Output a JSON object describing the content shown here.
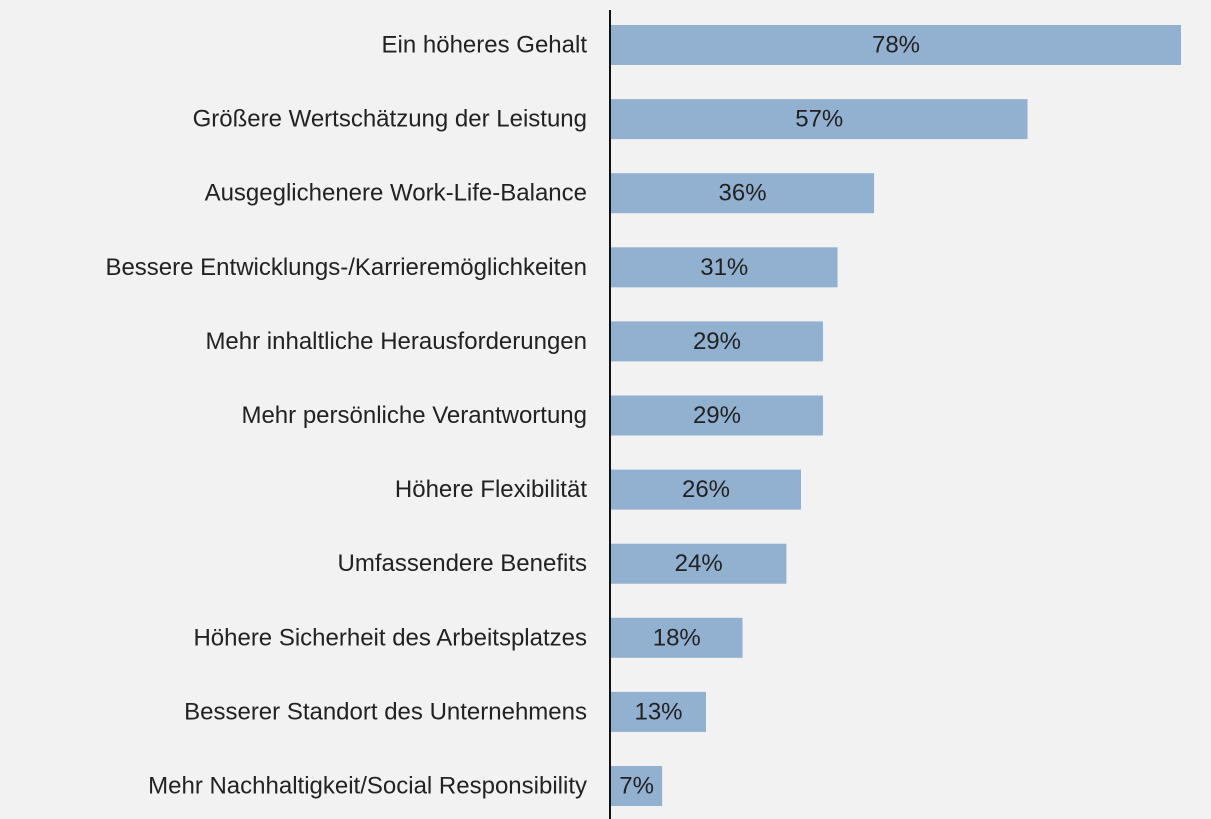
{
  "chart_data": {
    "type": "barh",
    "categories": [
      "Ein höheres Gehalt",
      "Größere Wertschätzung der Leistung",
      "Ausgeglichenere Work-Life-Balance",
      "Bessere Entwicklungs-/Karrieremöglichkeiten",
      "Mehr inhaltliche Herausforderungen",
      "Mehr persönliche Verantwortung",
      "Höhere Flexibilität",
      "Umfassendere Benefits",
      "Höhere Sicherheit des Arbeitsplatzes",
      "Besserer Standort des Unternehmens",
      "Mehr Nachhaltigkeit/Social Responsibility"
    ],
    "values": [
      78,
      57,
      36,
      31,
      29,
      29,
      26,
      24,
      18,
      13,
      7
    ],
    "value_labels": [
      "78%",
      "57%",
      "36%",
      "31%",
      "29%",
      "29%",
      "26%",
      "24%",
      "18%",
      "13%",
      "7%"
    ],
    "color": "#92b0d0"
  }
}
